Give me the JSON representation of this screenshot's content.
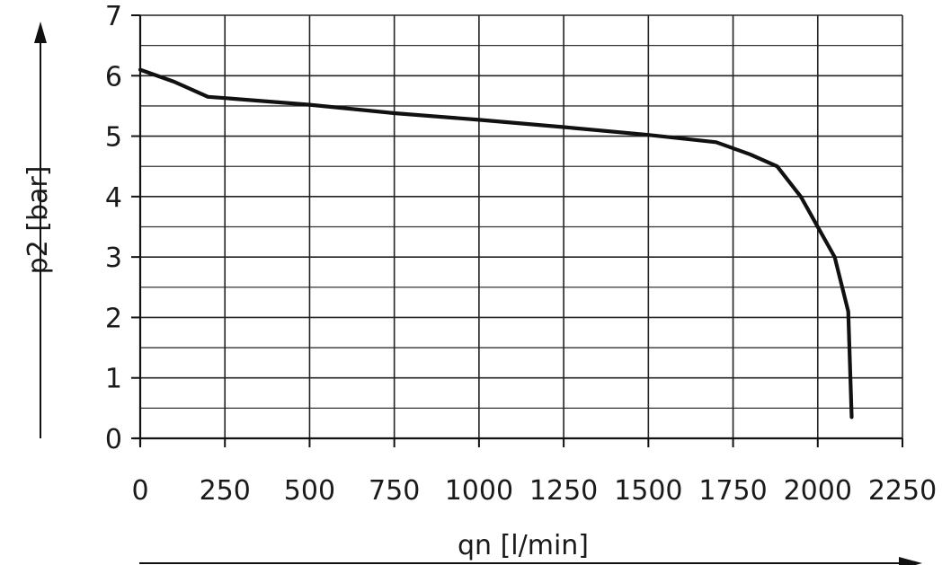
{
  "chart_data": {
    "type": "line",
    "title": "",
    "xlabel": "qn [l/min]",
    "ylabel": "p2 [bar]",
    "xlim": [
      0,
      2250
    ],
    "ylim": [
      0,
      7
    ],
    "x_ticks": [
      0,
      250,
      500,
      750,
      1000,
      1250,
      1500,
      1750,
      2000,
      2250
    ],
    "y_ticks": [
      0,
      1,
      2,
      3,
      4,
      5,
      6,
      7
    ],
    "grid": true,
    "minor_y_grid_step": 0.5,
    "line_color": "#111111",
    "series": [
      {
        "x": [
          0,
          100,
          200,
          250,
          500,
          750,
          1000,
          1250,
          1500,
          1700,
          1800,
          1880,
          1950,
          2020,
          2050,
          2090,
          2100
        ],
        "y": [
          6.1,
          5.9,
          5.65,
          5.63,
          5.52,
          5.38,
          5.27,
          5.15,
          5.02,
          4.9,
          4.7,
          4.5,
          4.0,
          3.3,
          3.0,
          2.1,
          0.35
        ]
      }
    ]
  }
}
